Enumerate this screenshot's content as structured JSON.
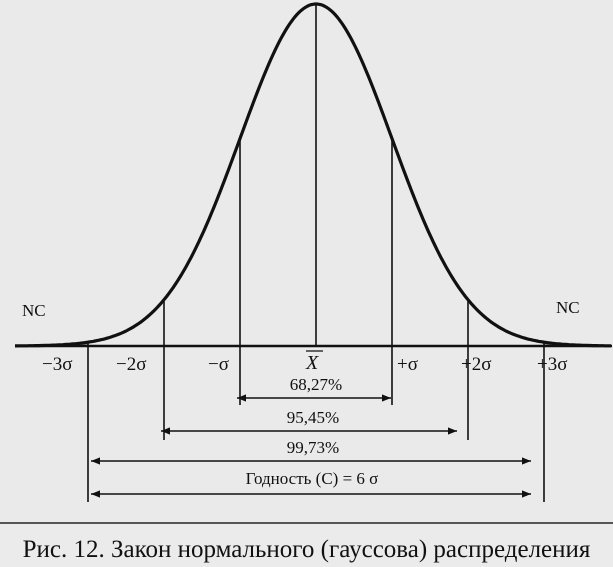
{
  "diagram": {
    "nc_left": "NC",
    "nc_right": "NC",
    "center_label": "X",
    "ticks": [
      {
        "label": "−3σ"
      },
      {
        "label": "−2σ"
      },
      {
        "label": "−σ"
      },
      {
        "label": "+σ"
      },
      {
        "label": "+2σ"
      },
      {
        "label": "+3σ"
      }
    ],
    "spans": [
      {
        "label": "68,27%"
      },
      {
        "label": "95,45%"
      },
      {
        "label": "99,73%"
      },
      {
        "label": "Годность (С) = 6 σ"
      }
    ],
    "colors": {
      "curve": "#111111",
      "tail_fill": "#9e9e9e",
      "background": "#eaeaea"
    }
  },
  "caption": "Рис. 12. Закон нормального (гауссова) распределения"
}
